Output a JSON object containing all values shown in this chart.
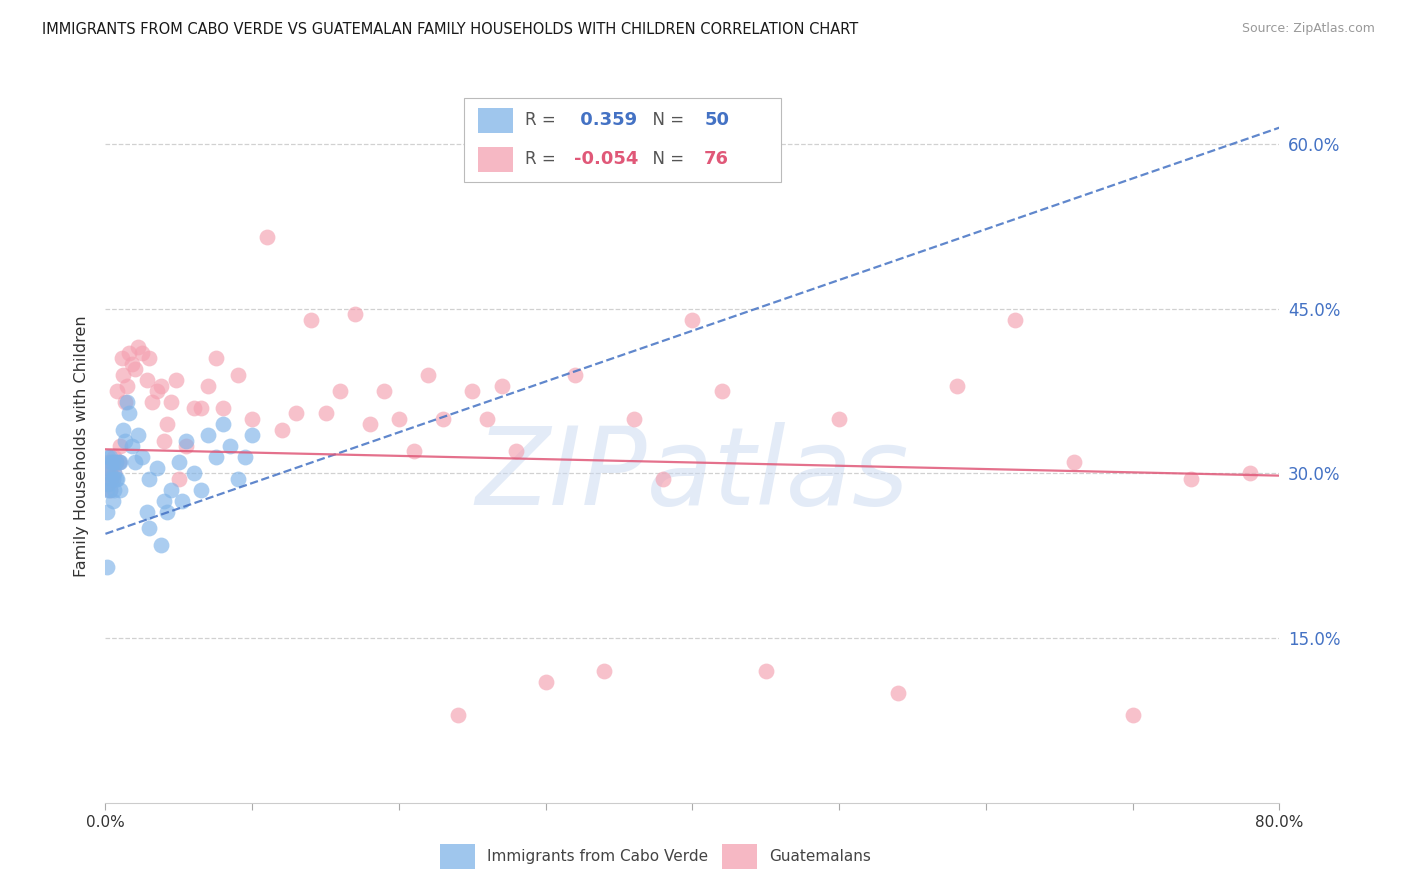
{
  "title": "IMMIGRANTS FROM CABO VERDE VS GUATEMALAN FAMILY HOUSEHOLDS WITH CHILDREN CORRELATION CHART",
  "source": "Source: ZipAtlas.com",
  "ylabel": "Family Households with Children",
  "r_cabo": 0.359,
  "n_cabo": 50,
  "r_guat": -0.054,
  "n_guat": 76,
  "xmin": 0.0,
  "xmax": 0.8,
  "ymin": 0.0,
  "ymax": 0.65,
  "yticks": [
    0.0,
    0.15,
    0.3,
    0.45,
    0.6
  ],
  "ytick_labels": [
    "",
    "15.0%",
    "30.0%",
    "45.0%",
    "60.0%"
  ],
  "xticks": [
    0.0,
    0.1,
    0.2,
    0.3,
    0.4,
    0.5,
    0.6,
    0.7,
    0.8
  ],
  "xtick_labels": [
    "0.0%",
    "",
    "",
    "",
    "",
    "",
    "",
    "",
    "80.0%"
  ],
  "color_cabo": "#7fb3e8",
  "color_guat": "#f4a0b0",
  "trend_cabo_color": "#4472c4",
  "trend_guat_color": "#e05878",
  "watermark": "ZIPatlas",
  "watermark_color": "#c8d8f0",
  "legend_cabo": "Immigrants from Cabo Verde",
  "legend_guat": "Guatemalans",
  "cabo_trend_x0": 0.0,
  "cabo_trend_y0": 0.245,
  "cabo_trend_x1": 0.8,
  "cabo_trend_y1": 0.615,
  "guat_trend_x0": 0.0,
  "guat_trend_y0": 0.322,
  "guat_trend_x1": 0.8,
  "guat_trend_y1": 0.298,
  "cabo_x": [
    0.001,
    0.001,
    0.001,
    0.002,
    0.002,
    0.002,
    0.003,
    0.003,
    0.003,
    0.004,
    0.004,
    0.005,
    0.005,
    0.005,
    0.006,
    0.006,
    0.007,
    0.007,
    0.008,
    0.009,
    0.01,
    0.01,
    0.012,
    0.013,
    0.015,
    0.016,
    0.018,
    0.02,
    0.022,
    0.025,
    0.028,
    0.03,
    0.03,
    0.035,
    0.038,
    0.04,
    0.042,
    0.045,
    0.05,
    0.052,
    0.055,
    0.06,
    0.065,
    0.07,
    0.075,
    0.08,
    0.085,
    0.09,
    0.095,
    0.1
  ],
  "cabo_y": [
    0.215,
    0.265,
    0.285,
    0.29,
    0.305,
    0.315,
    0.285,
    0.3,
    0.315,
    0.295,
    0.31,
    0.275,
    0.295,
    0.31,
    0.285,
    0.3,
    0.295,
    0.31,
    0.295,
    0.31,
    0.285,
    0.31,
    0.34,
    0.33,
    0.365,
    0.355,
    0.325,
    0.31,
    0.335,
    0.315,
    0.265,
    0.25,
    0.295,
    0.305,
    0.235,
    0.275,
    0.265,
    0.285,
    0.31,
    0.275,
    0.33,
    0.3,
    0.285,
    0.335,
    0.315,
    0.345,
    0.325,
    0.295,
    0.315,
    0.335
  ],
  "guat_x": [
    0.001,
    0.002,
    0.002,
    0.003,
    0.003,
    0.004,
    0.004,
    0.005,
    0.005,
    0.006,
    0.006,
    0.007,
    0.008,
    0.009,
    0.01,
    0.011,
    0.012,
    0.013,
    0.015,
    0.016,
    0.018,
    0.02,
    0.022,
    0.025,
    0.028,
    0.03,
    0.032,
    0.035,
    0.038,
    0.04,
    0.042,
    0.045,
    0.048,
    0.05,
    0.055,
    0.06,
    0.065,
    0.07,
    0.075,
    0.08,
    0.09,
    0.1,
    0.11,
    0.12,
    0.13,
    0.14,
    0.15,
    0.16,
    0.17,
    0.18,
    0.19,
    0.2,
    0.21,
    0.22,
    0.23,
    0.24,
    0.25,
    0.26,
    0.27,
    0.28,
    0.3,
    0.32,
    0.34,
    0.36,
    0.38,
    0.4,
    0.42,
    0.45,
    0.5,
    0.54,
    0.58,
    0.62,
    0.66,
    0.7,
    0.74,
    0.78
  ],
  "guat_y": [
    0.305,
    0.29,
    0.31,
    0.285,
    0.3,
    0.305,
    0.295,
    0.31,
    0.295,
    0.3,
    0.315,
    0.31,
    0.375,
    0.31,
    0.325,
    0.405,
    0.39,
    0.365,
    0.38,
    0.41,
    0.4,
    0.395,
    0.415,
    0.41,
    0.385,
    0.405,
    0.365,
    0.375,
    0.38,
    0.33,
    0.345,
    0.365,
    0.385,
    0.295,
    0.325,
    0.36,
    0.36,
    0.38,
    0.405,
    0.36,
    0.39,
    0.35,
    0.515,
    0.34,
    0.355,
    0.44,
    0.355,
    0.375,
    0.445,
    0.345,
    0.375,
    0.35,
    0.32,
    0.39,
    0.35,
    0.08,
    0.375,
    0.35,
    0.38,
    0.32,
    0.11,
    0.39,
    0.12,
    0.35,
    0.295,
    0.44,
    0.375,
    0.12,
    0.35,
    0.1,
    0.38,
    0.44,
    0.31,
    0.08,
    0.295,
    0.3
  ]
}
